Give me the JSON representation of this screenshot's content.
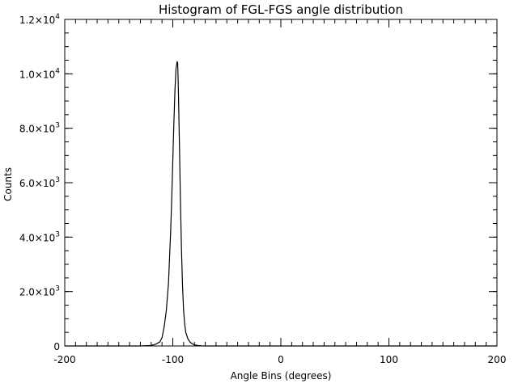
{
  "chart_data": {
    "type": "line",
    "title": "Histogram of FGL-FGS angle distribution",
    "xlabel": "Angle Bins (degrees)",
    "ylabel": "Counts",
    "xlim": [
      -200,
      200
    ],
    "ylim": [
      0,
      12000
    ],
    "xticks": [
      {
        "value": -200,
        "label": "-200"
      },
      {
        "value": -100,
        "label": "-100"
      },
      {
        "value": 0,
        "label": "0"
      },
      {
        "value": 100,
        "label": "100"
      },
      {
        "value": 200,
        "label": "200"
      }
    ],
    "yticks": [
      {
        "value": 0,
        "mant": "0",
        "exp": ""
      },
      {
        "value": 2000,
        "mant": "2.0×10",
        "exp": "3"
      },
      {
        "value": 4000,
        "mant": "4.0×10",
        "exp": "3"
      },
      {
        "value": 6000,
        "mant": "6.0×10",
        "exp": "3"
      },
      {
        "value": 8000,
        "mant": "8.0×10",
        "exp": "3"
      },
      {
        "value": 10000,
        "mant": "1.0×10",
        "exp": "4"
      },
      {
        "value": 12000,
        "mant": "1.2×10",
        "exp": "4"
      }
    ],
    "x_minor_step": 10,
    "y_minor_step": 500,
    "series": [
      {
        "name": "FGL-FGS angle",
        "x": [
          -200,
          -130,
          -120,
          -116,
          -112,
          -110,
          -108,
          -106,
          -104,
          -102,
          -101,
          -100,
          -99,
          -98,
          -97,
          -96,
          -95.5,
          -95,
          -94,
          -93,
          -92,
          -91,
          -90,
          -89,
          -88,
          -86,
          -84,
          -82,
          -80,
          -77,
          -72,
          -60,
          200
        ],
        "y": [
          0,
          0,
          20,
          60,
          150,
          300,
          700,
          1300,
          2300,
          4200,
          5400,
          6800,
          8200,
          9400,
          10200,
          10450,
          10400,
          9700,
          7700,
          5500,
          3600,
          2200,
          1300,
          800,
          500,
          260,
          140,
          80,
          40,
          20,
          0,
          0,
          0
        ]
      }
    ]
  }
}
